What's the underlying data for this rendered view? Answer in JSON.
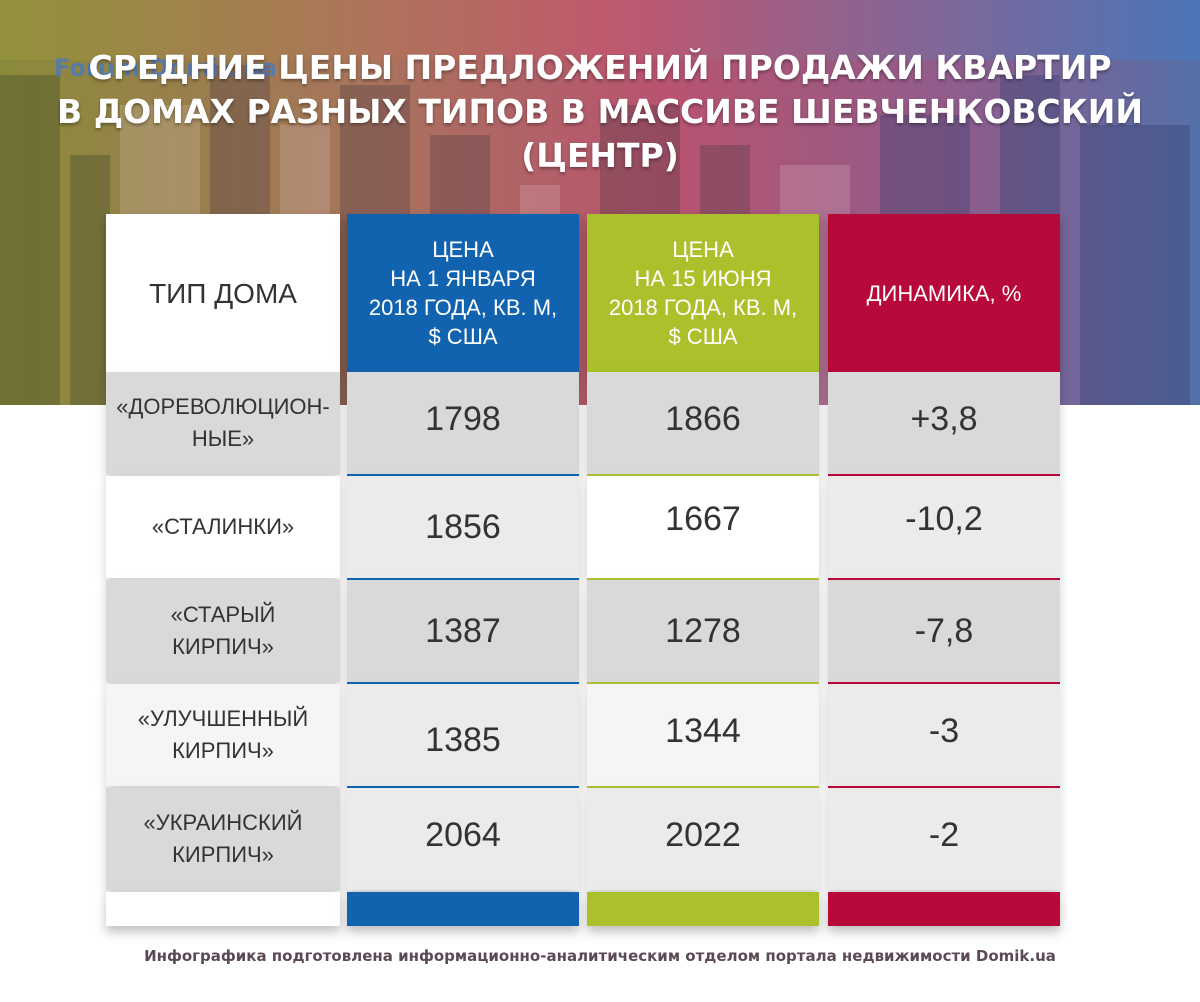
{
  "watermark": "Forum.Domik.ua",
  "title_lines": [
    "СРЕДНИЕ ЦЕНЫ ПРЕДЛОЖЕНИЙ ПРОДАЖИ КВАРТИР",
    "В ДОМАХ РАЗНЫХ ТИПОВ В МАССИВЕ ШЕВЧЕНКОВСКИЙ",
    "(ЦЕНТР)"
  ],
  "headers": {
    "type": "ТИП ДОМА",
    "jan": [
      "ЦЕНА",
      "НА 1 ЯНВАРЯ",
      "2018 ГОДА, КВ. М,",
      "$ США"
    ],
    "jun": [
      "ЦЕНА",
      "НА 15 ИЮНЯ",
      "2018 ГОДА, КВ. М,",
      "$ США"
    ],
    "dyn": "ДИНАМИКА, %"
  },
  "colors": {
    "jan": "#1163b0",
    "jun": "#abc02a",
    "dyn": "#b80a3a"
  },
  "chart_data": {
    "type": "table",
    "columns": [
      "ТИП ДОМА",
      "ЦЕНА НА 1 ЯНВАРЯ 2018 ГОДА, КВ. М, $ США",
      "ЦЕНА НА 15 ИЮНЯ 2018 ГОДА, КВ. М, $ США",
      "ДИНАМИКА, %"
    ],
    "rows": [
      {
        "name": [
          "«ДОРЕВОЛЮЦИОН-",
          "НЫЕ»"
        ],
        "jan": "1798",
        "jun": "1866",
        "dyn": "+3,8"
      },
      {
        "name": [
          "«СТАЛИНКИ»"
        ],
        "jan": "1856",
        "jun": "1667",
        "dyn": "-10,2"
      },
      {
        "name": [
          "«СТАРЫЙ",
          "КИРПИЧ»"
        ],
        "jan": "1387",
        "jun": "1278",
        "dyn": "-7,8"
      },
      {
        "name": [
          "«УЛУЧШЕННЫЙ",
          "КИРПИЧ»"
        ],
        "jan": "1385",
        "jun": "1344",
        "dyn": "-3"
      },
      {
        "name": [
          "«УКРАИНСКИЙ",
          "КИРПИЧ»"
        ],
        "jan": "2064",
        "jun": "2022",
        "dyn": "-2"
      }
    ]
  },
  "caption": "Инфографика подготовлена информационно-аналитическим отделом портала недвижимости Domik.ua"
}
